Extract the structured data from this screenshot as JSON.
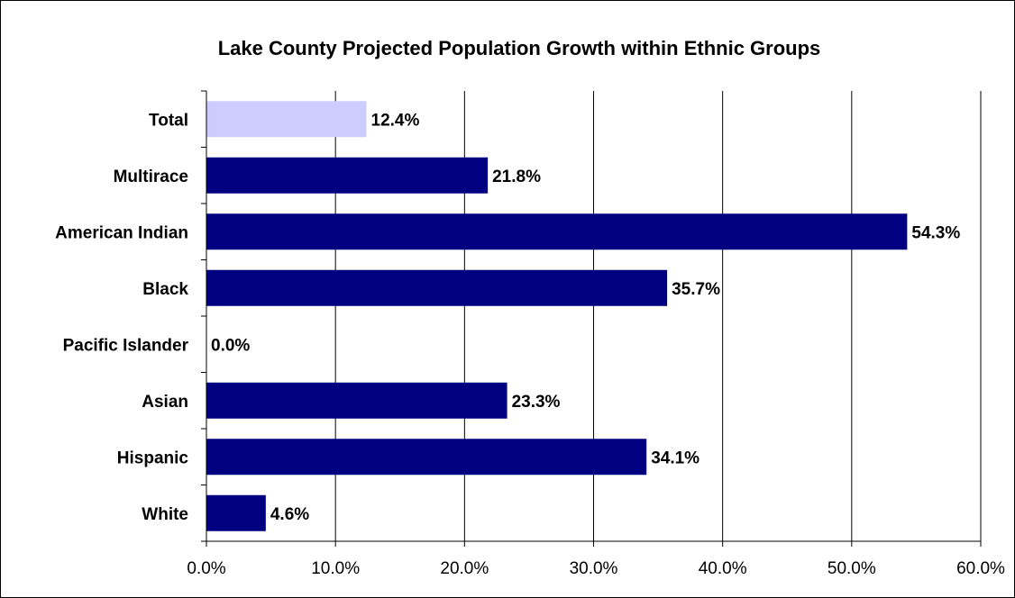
{
  "chart_data": {
    "type": "bar",
    "orientation": "horizontal",
    "title": "Lake County Projected Population Growth within Ethnic Groups",
    "xlabel": "",
    "ylabel": "",
    "categories": [
      "Total",
      "Multirace",
      "American Indian",
      "Black",
      "Pacific Islander",
      "Asian",
      "Hispanic",
      "White"
    ],
    "values": [
      12.4,
      21.8,
      54.3,
      35.7,
      0.0,
      23.3,
      34.1,
      4.6
    ],
    "data_labels": [
      "12.4%",
      "21.8%",
      "54.3%",
      "35.7%",
      "0.0%",
      "23.3%",
      "34.1%",
      "4.6%"
    ],
    "bar_colors": [
      "#ccccff",
      "#000080",
      "#000080",
      "#000080",
      "#000080",
      "#000080",
      "#000080",
      "#000080"
    ],
    "xlim": [
      0,
      60
    ],
    "x_ticks": [
      0,
      10,
      20,
      30,
      40,
      50,
      60
    ],
    "x_tick_labels": [
      "0.0%",
      "10.0%",
      "20.0%",
      "30.0%",
      "40.0%",
      "50.0%",
      "60.0%"
    ],
    "grid": "vertical",
    "legend": "none"
  }
}
